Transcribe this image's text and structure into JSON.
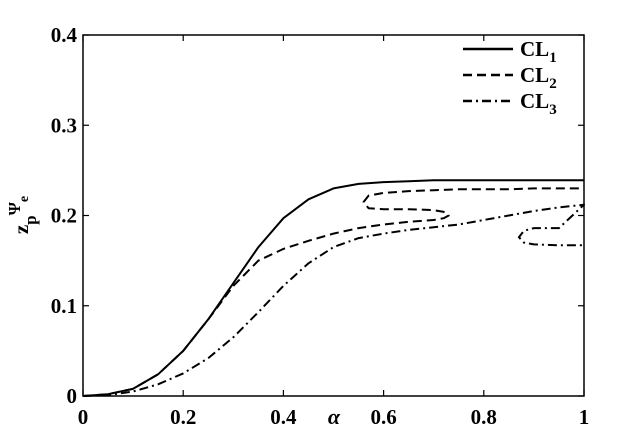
{
  "chart_data": {
    "type": "line",
    "xlim": [
      0,
      1
    ],
    "ylim": [
      0,
      0.4
    ],
    "xticks": [
      "0",
      "0.2",
      "0.4",
      "0.6",
      "0.8",
      "1"
    ],
    "xtick_values": [
      0,
      0.2,
      0.4,
      0.6,
      0.8,
      1.0
    ],
    "yticks": [
      "0",
      "0.1",
      "0.2",
      "0.3",
      "0.4"
    ],
    "ytick_values": [
      0,
      0.1,
      0.2,
      0.3,
      0.4
    ],
    "xlabel": "α",
    "ylabel": {
      "base": "z",
      "sub": "p",
      "sup": "Ψ",
      "sup_sub": "e"
    },
    "grid": false,
    "legend_position": "top-right",
    "series": [
      {
        "name": "CL",
        "name_sub": "1",
        "style": "solid",
        "color": "#000000",
        "x": [
          0,
          0.05,
          0.1,
          0.15,
          0.2,
          0.25,
          0.3,
          0.35,
          0.4,
          0.45,
          0.5,
          0.55,
          0.6,
          0.65,
          0.7,
          0.75,
          0.8,
          0.85,
          0.9,
          0.95,
          1.0
        ],
        "y": [
          0.0,
          0.002,
          0.008,
          0.024,
          0.05,
          0.085,
          0.125,
          0.165,
          0.197,
          0.218,
          0.23,
          0.235,
          0.237,
          0.238,
          0.239,
          0.239,
          0.239,
          0.239,
          0.239,
          0.239,
          0.239
        ]
      },
      {
        "name": "CL",
        "name_sub": "2",
        "style": "dashed",
        "color": "#000000",
        "x": [
          0,
          0.05,
          0.1,
          0.15,
          0.2,
          0.25,
          0.3,
          0.35,
          0.4,
          0.45,
          0.5,
          0.55,
          0.6,
          0.65,
          0.7,
          0.72,
          0.73,
          0.72,
          0.7,
          0.65,
          0.6,
          0.57,
          0.56,
          0.57,
          0.6,
          0.65,
          0.7,
          0.75,
          0.8,
          0.85,
          0.9,
          0.95,
          1.0
        ],
        "y": [
          0.0,
          0.002,
          0.008,
          0.024,
          0.05,
          0.085,
          0.122,
          0.15,
          0.163,
          0.172,
          0.18,
          0.186,
          0.19,
          0.193,
          0.195,
          0.197,
          0.2,
          0.204,
          0.206,
          0.207,
          0.207,
          0.208,
          0.215,
          0.222,
          0.225,
          0.227,
          0.228,
          0.229,
          0.229,
          0.229,
          0.23,
          0.23,
          0.23
        ]
      },
      {
        "name": "CL",
        "name_sub": "3",
        "style": "dashdot",
        "color": "#000000",
        "x": [
          0,
          0.05,
          0.1,
          0.15,
          0.2,
          0.25,
          0.3,
          0.35,
          0.4,
          0.45,
          0.5,
          0.55,
          0.6,
          0.65,
          0.7,
          0.75,
          0.8,
          0.85,
          0.9,
          0.95,
          1.0,
          0.95,
          0.9,
          0.88,
          0.87,
          0.88,
          0.9,
          0.95,
          1.0
        ],
        "y": [
          0.0,
          0.001,
          0.005,
          0.013,
          0.025,
          0.042,
          0.065,
          0.093,
          0.122,
          0.147,
          0.165,
          0.175,
          0.18,
          0.184,
          0.187,
          0.19,
          0.195,
          0.2,
          0.205,
          0.209,
          0.212,
          0.186,
          0.186,
          0.183,
          0.176,
          0.17,
          0.168,
          0.167,
          0.167
        ]
      }
    ]
  }
}
